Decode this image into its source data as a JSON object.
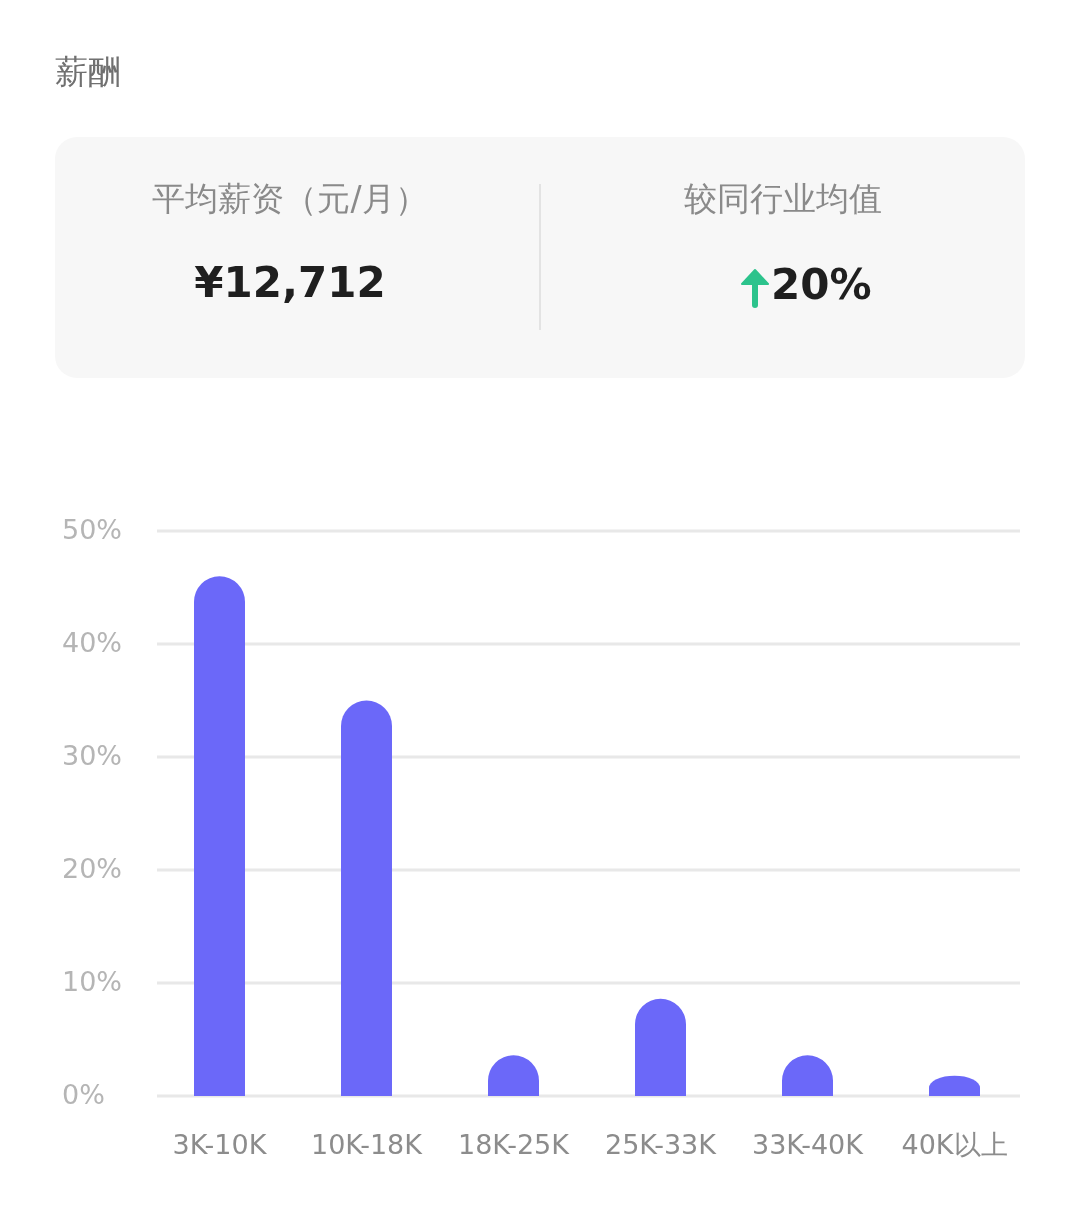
{
  "chart_data": [
    {
      "type": "other",
      "title": "薪酬",
      "annotations": [
        "平均薪资（元/月）",
        "¥12,712",
        "较同行业均值",
        "20%"
      ]
    },
    {
      "type": "bar",
      "categories": [
        "3K-10K",
        "10K-18K",
        "18K-25K",
        "25K-33K",
        "33K-40K",
        "40K以上"
      ],
      "values": [
        46,
        35,
        3.6,
        8.6,
        3.6,
        1.8
      ],
      "color": "#6b68f9",
      "ylim": [
        0,
        50
      ],
      "yticks": [
        {
          "value": 0,
          "label": "0%"
        },
        {
          "value": 10,
          "label": "10%"
        },
        {
          "value": 20,
          "label": "20%"
        },
        {
          "value": 30,
          "label": "30%"
        },
        {
          "value": 40,
          "label": "40%"
        },
        {
          "value": 50,
          "label": "50%"
        }
      ],
      "grid": "y"
    }
  ]
}
